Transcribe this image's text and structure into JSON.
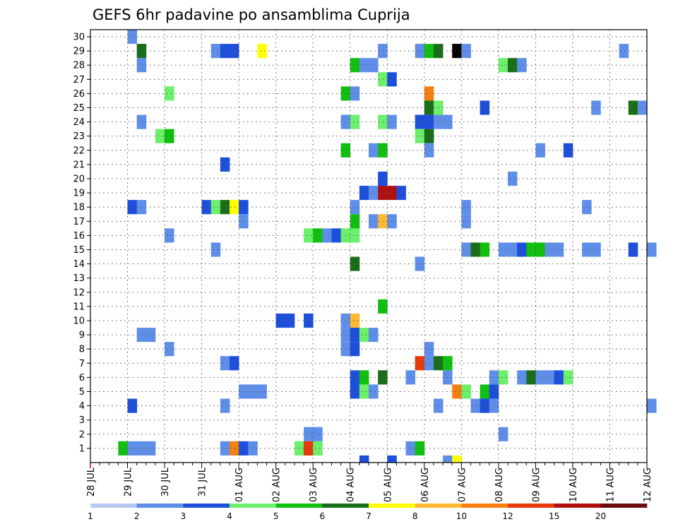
{
  "chart_data": {
    "type": "heatmap",
    "title": "GEFS 6hr padavine po ansamblima Cuprija",
    "x_ticks": [
      "28 JUL",
      "29 JUL",
      "30 JUL",
      "31 JUL",
      "01 AUG",
      "02 AUG",
      "03 AUG",
      "04 AUG",
      "05 AUG",
      "06 AUG",
      "07 AUG",
      "08 AUG",
      "09 AUG",
      "10 AUG",
      "11 AUG",
      "12 AUG"
    ],
    "y_ticks": [
      "1",
      "2",
      "3",
      "4",
      "5",
      "6",
      "7",
      "8",
      "9",
      "10",
      "11",
      "12",
      "13",
      "14",
      "15",
      "16",
      "17",
      "18",
      "19",
      "20",
      "21",
      "22",
      "23",
      "24",
      "25",
      "26",
      "27",
      "28",
      "29",
      "30"
    ],
    "y_range": [
      0,
      30
    ],
    "time_step": "6hr",
    "grid": "dotted",
    "colorbar": {
      "labels": [
        "1",
        "2",
        "3",
        "4",
        "5",
        "6",
        "7",
        "8",
        "10",
        "12",
        "15",
        "20"
      ],
      "colors": [
        "#b7c8f5",
        "#5f8ee8",
        "#1d4fdb",
        "#6cf06c",
        "#10bf10",
        "#1a6e1a",
        "#ffff00",
        "#ffb833",
        "#f57f10",
        "#e63a0a",
        "#b01010",
        "#6b0d0d"
      ]
    },
    "cells": [
      [
        30,
        4,
        1
      ],
      [
        29,
        5,
        5
      ],
      [
        29,
        13,
        1
      ],
      [
        29,
        14,
        2
      ],
      [
        29,
        15,
        2
      ],
      [
        29,
        18,
        6
      ],
      [
        29,
        31,
        1
      ],
      [
        29,
        35,
        1
      ],
      [
        29,
        36,
        4
      ],
      [
        29,
        37,
        5
      ],
      [
        29,
        39,
        12
      ],
      [
        29,
        40,
        1
      ],
      [
        29,
        57,
        1
      ],
      [
        28,
        5,
        1
      ],
      [
        28,
        28,
        4
      ],
      [
        28,
        29,
        1
      ],
      [
        28,
        30,
        1
      ],
      [
        28,
        44,
        3
      ],
      [
        28,
        45,
        5
      ],
      [
        28,
        46,
        1
      ],
      [
        27,
        31,
        3
      ],
      [
        27,
        32,
        2
      ],
      [
        26,
        8,
        3
      ],
      [
        26,
        27,
        4
      ],
      [
        26,
        28,
        1
      ],
      [
        26,
        36,
        8
      ],
      [
        25,
        36,
        5
      ],
      [
        25,
        37,
        3
      ],
      [
        25,
        42,
        2
      ],
      [
        25,
        54,
        1
      ],
      [
        25,
        58,
        5
      ],
      [
        25,
        59,
        1
      ],
      [
        24,
        5,
        1
      ],
      [
        24,
        27,
        1
      ],
      [
        24,
        28,
        3
      ],
      [
        24,
        31,
        3
      ],
      [
        24,
        32,
        1
      ],
      [
        24,
        35,
        2
      ],
      [
        24,
        36,
        2
      ],
      [
        24,
        37,
        1
      ],
      [
        24,
        38,
        1
      ],
      [
        23,
        7,
        3
      ],
      [
        23,
        8,
        4
      ],
      [
        23,
        35,
        3
      ],
      [
        23,
        36,
        5
      ],
      [
        22,
        27,
        4
      ],
      [
        22,
        30,
        1
      ],
      [
        22,
        31,
        4
      ],
      [
        22,
        36,
        1
      ],
      [
        22,
        48,
        1
      ],
      [
        22,
        51,
        2
      ],
      [
        21,
        14,
        2
      ],
      [
        20,
        31,
        2
      ],
      [
        20,
        45,
        1
      ],
      [
        19,
        29,
        2
      ],
      [
        19,
        30,
        1
      ],
      [
        19,
        31,
        10
      ],
      [
        19,
        32,
        10
      ],
      [
        19,
        33,
        2
      ],
      [
        18,
        4,
        2
      ],
      [
        18,
        5,
        1
      ],
      [
        18,
        12,
        2
      ],
      [
        18,
        13,
        3
      ],
      [
        18,
        14,
        5
      ],
      [
        18,
        15,
        6
      ],
      [
        18,
        16,
        2
      ],
      [
        18,
        28,
        1
      ],
      [
        18,
        40,
        1
      ],
      [
        18,
        53,
        1
      ],
      [
        17,
        16,
        1
      ],
      [
        17,
        28,
        4
      ],
      [
        17,
        30,
        1
      ],
      [
        17,
        31,
        7
      ],
      [
        17,
        32,
        1
      ],
      [
        17,
        40,
        1
      ],
      [
        16,
        8,
        1
      ],
      [
        16,
        23,
        3
      ],
      [
        16,
        24,
        4
      ],
      [
        16,
        25,
        1
      ],
      [
        16,
        26,
        2
      ],
      [
        16,
        27,
        3
      ],
      [
        16,
        28,
        3
      ],
      [
        15,
        13,
        1
      ],
      [
        15,
        40,
        1
      ],
      [
        15,
        41,
        5
      ],
      [
        15,
        42,
        4
      ],
      [
        15,
        44,
        1
      ],
      [
        15,
        45,
        1
      ],
      [
        15,
        46,
        2
      ],
      [
        15,
        47,
        4
      ],
      [
        15,
        48,
        4
      ],
      [
        15,
        49,
        1
      ],
      [
        15,
        50,
        1
      ],
      [
        15,
        53,
        1
      ],
      [
        15,
        54,
        1
      ],
      [
        15,
        58,
        2
      ],
      [
        15,
        60,
        1
      ],
      [
        14,
        28,
        5
      ],
      [
        14,
        35,
        1
      ],
      [
        11,
        31,
        4
      ],
      [
        10,
        20,
        2
      ],
      [
        10,
        21,
        2
      ],
      [
        10,
        23,
        2
      ],
      [
        10,
        27,
        1
      ],
      [
        10,
        28,
        7
      ],
      [
        9,
        5,
        1
      ],
      [
        9,
        6,
        1
      ],
      [
        9,
        27,
        1
      ],
      [
        9,
        28,
        2
      ],
      [
        9,
        29,
        3
      ],
      [
        9,
        30,
        1
      ],
      [
        8,
        8,
        1
      ],
      [
        8,
        27,
        1
      ],
      [
        8,
        28,
        2
      ],
      [
        8,
        36,
        1
      ],
      [
        7,
        14,
        1
      ],
      [
        7,
        15,
        2
      ],
      [
        7,
        35,
        9
      ],
      [
        7,
        36,
        1
      ],
      [
        7,
        37,
        5
      ],
      [
        7,
        38,
        4
      ],
      [
        6,
        28,
        2
      ],
      [
        6,
        29,
        4
      ],
      [
        6,
        31,
        5
      ],
      [
        6,
        34,
        1
      ],
      [
        6,
        38,
        1
      ],
      [
        6,
        43,
        1
      ],
      [
        6,
        44,
        3
      ],
      [
        6,
        46,
        1
      ],
      [
        6,
        47,
        5
      ],
      [
        6,
        48,
        1
      ],
      [
        6,
        49,
        1
      ],
      [
        6,
        50,
        2
      ],
      [
        6,
        51,
        3
      ],
      [
        5,
        16,
        1
      ],
      [
        5,
        17,
        1
      ],
      [
        5,
        18,
        1
      ],
      [
        5,
        28,
        2
      ],
      [
        5,
        29,
        3
      ],
      [
        5,
        30,
        1
      ],
      [
        5,
        39,
        8
      ],
      [
        5,
        40,
        3
      ],
      [
        5,
        42,
        4
      ],
      [
        5,
        43,
        2
      ],
      [
        4,
        4,
        2
      ],
      [
        4,
        14,
        1
      ],
      [
        4,
        37,
        1
      ],
      [
        4,
        41,
        1
      ],
      [
        4,
        42,
        2
      ],
      [
        4,
        43,
        1
      ],
      [
        4,
        60,
        1
      ],
      [
        2,
        23,
        1
      ],
      [
        2,
        24,
        1
      ],
      [
        2,
        44,
        1
      ],
      [
        1,
        3,
        4
      ],
      [
        1,
        4,
        1
      ],
      [
        1,
        5,
        1
      ],
      [
        1,
        6,
        1
      ],
      [
        1,
        14,
        1
      ],
      [
        1,
        15,
        8
      ],
      [
        1,
        16,
        2
      ],
      [
        1,
        17,
        1
      ],
      [
        1,
        22,
        3
      ],
      [
        1,
        23,
        9
      ],
      [
        1,
        24,
        3
      ],
      [
        1,
        34,
        1
      ],
      [
        1,
        35,
        4
      ],
      [
        0,
        29,
        2
      ],
      [
        0,
        32,
        2
      ],
      [
        0,
        38,
        1
      ],
      [
        0,
        39,
        6
      ]
    ]
  }
}
